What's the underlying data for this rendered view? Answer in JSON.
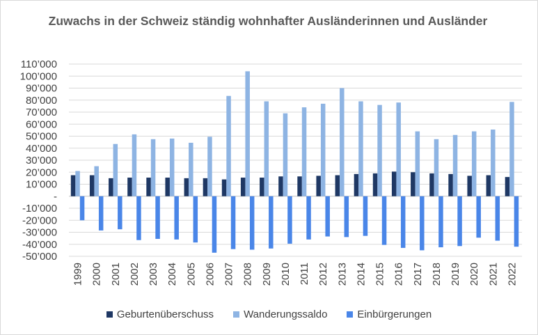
{
  "chart_data": {
    "type": "bar",
    "title": "Zuwachs in der Schweiz ständig wohnhafter Ausländerinnen und Ausländer",
    "categories": [
      "1999",
      "2000",
      "2001",
      "2002",
      "2003",
      "2004",
      "2005",
      "2006",
      "2007",
      "2008",
      "2009",
      "2010",
      "2011",
      "2012",
      "2013",
      "2014",
      "2015",
      "2016",
      "2017",
      "2018",
      "2019",
      "2020",
      "2021",
      "2022"
    ],
    "series": [
      {
        "name": "Geburtenüberschuss",
        "color": "#1f3864",
        "values": [
          17500,
          17500,
          15000,
          15500,
          15500,
          15500,
          15000,
          15000,
          14000,
          15500,
          15500,
          16500,
          16500,
          17000,
          17500,
          18500,
          19000,
          20500,
          20000,
          19000,
          18500,
          17000,
          17500,
          16000
        ]
      },
      {
        "name": "Wanderungssaldo",
        "color": "#8eb4e3",
        "values": [
          21000,
          25000,
          43500,
          51500,
          47500,
          48000,
          44500,
          49500,
          83500,
          104000,
          79000,
          69000,
          74000,
          77000,
          90000,
          79000,
          76000,
          78000,
          54000,
          47500,
          51000,
          54000,
          55500,
          78500
        ]
      },
      {
        "name": "Einbürgerungen",
        "color": "#4a86e8",
        "values": [
          -20000,
          -28500,
          -27500,
          -36500,
          -35500,
          -36000,
          -38500,
          -47000,
          -44000,
          -44500,
          -43500,
          -39500,
          -36000,
          -33500,
          -34000,
          -33000,
          -40500,
          -43000,
          -45000,
          -42500,
          -41500,
          -34500,
          -37000,
          -42000
        ]
      }
    ],
    "ylim": [
      -50000,
      110000
    ],
    "ytick_values": [
      -50000,
      -40000,
      -30000,
      -20000,
      -10000,
      0,
      10000,
      20000,
      30000,
      40000,
      50000,
      60000,
      70000,
      80000,
      90000,
      100000,
      110000
    ],
    "ytick_labels": [
      "-50’000",
      "-40’000",
      "-30’000",
      "-20’000",
      "-10’000",
      "-",
      "10’000",
      "20’000",
      "30’000",
      "40’000",
      "50’000",
      "60’000",
      "70’000",
      "80’000",
      "90’000",
      "100’000",
      "110’000"
    ],
    "grid": true,
    "legend_position": "bottom",
    "xlabel": "",
    "ylabel": ""
  }
}
